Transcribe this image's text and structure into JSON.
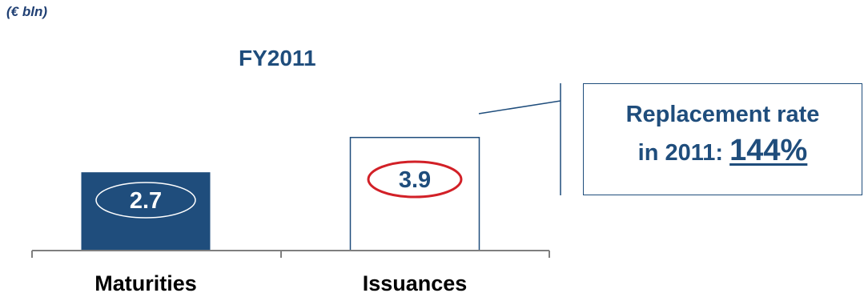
{
  "unit_label": "(€ bln)",
  "chart_data": {
    "type": "bar",
    "title": "FY2011",
    "categories": [
      "Maturities",
      "Issuances"
    ],
    "values": [
      2.7,
      3.9
    ],
    "value_labels": [
      "2.7",
      "3.9"
    ],
    "xlabel": "",
    "ylabel": "",
    "ylim": [
      0,
      5.3
    ],
    "grid": false,
    "colors": {
      "Maturities": "#1f4d7c",
      "Issuances": "#ffffff",
      "outline": "#1f4d7c",
      "highlight_ellipse": "#d22027"
    }
  },
  "callout": {
    "line1": "Replacement rate",
    "line2_prefix": "in 2011:",
    "rate": "144%"
  }
}
